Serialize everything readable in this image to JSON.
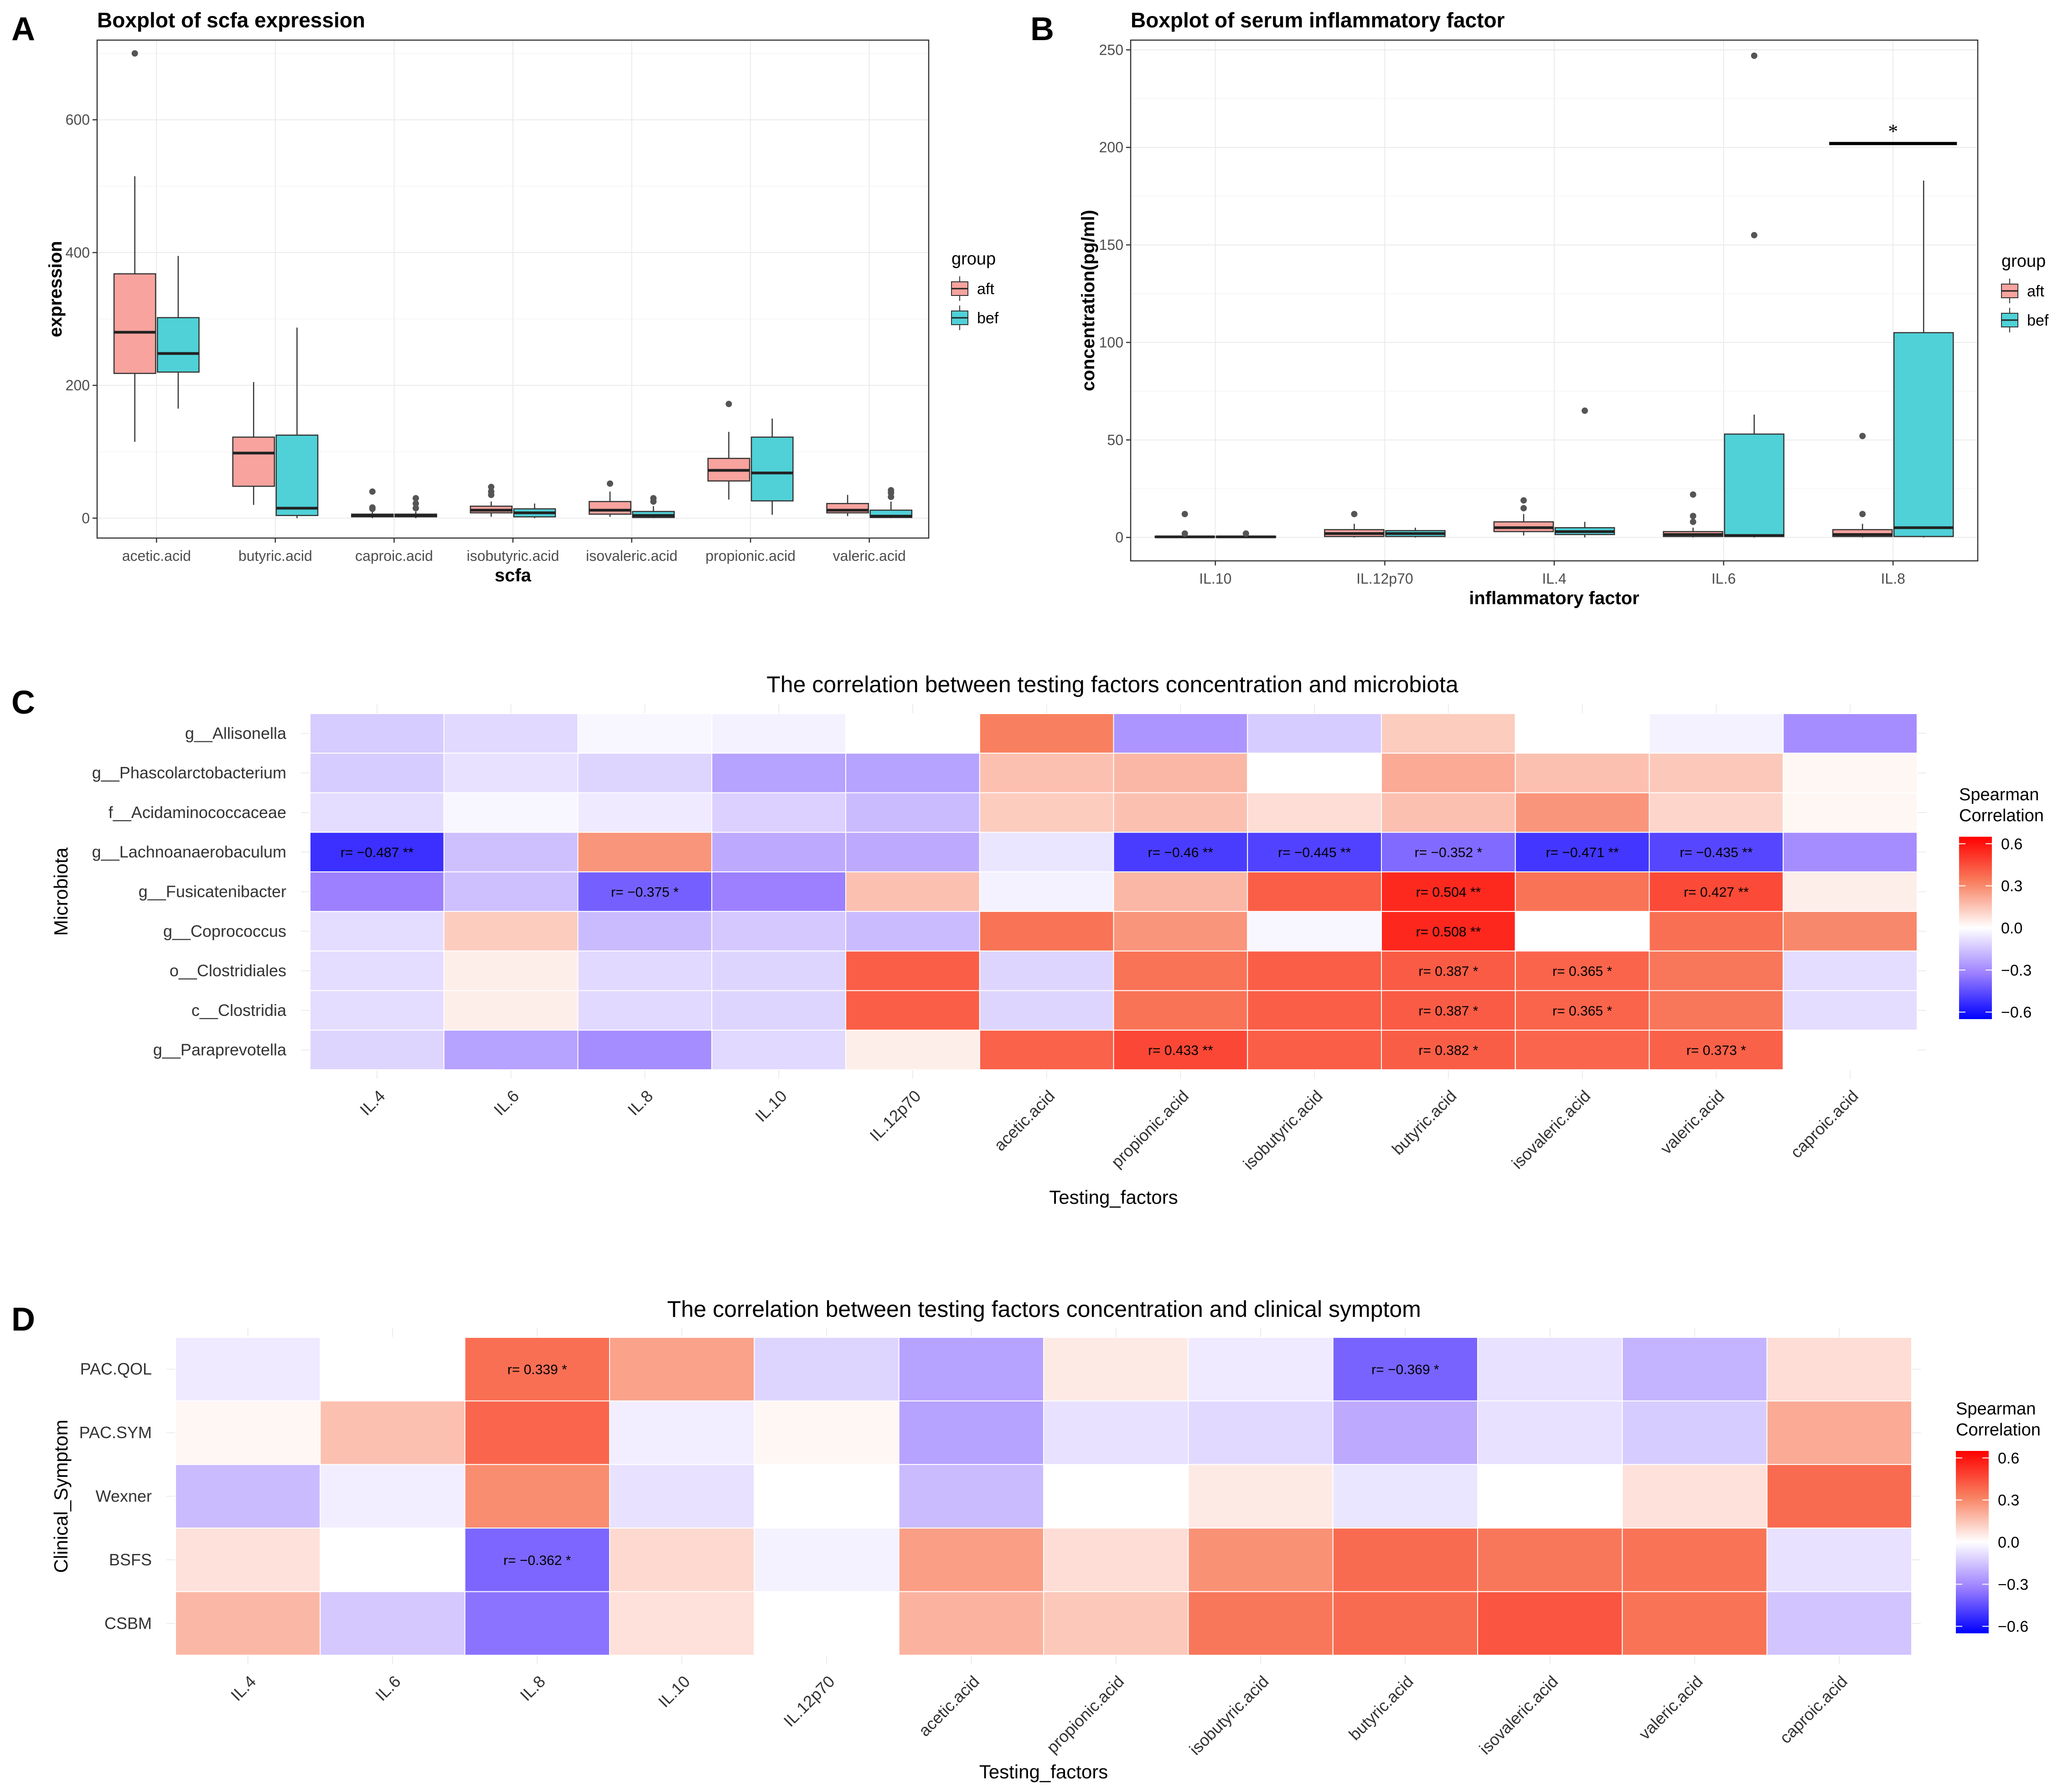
{
  "chart_data": [
    {
      "type": "box",
      "panel": "A",
      "title": "Boxplot of scfa expression",
      "xlabel": "scfa",
      "ylabel": "expression",
      "ylim": [
        -30,
        720
      ],
      "yticks": [
        0,
        200,
        400,
        600
      ],
      "categories": [
        "acetic.acid",
        "butyric.acid",
        "caproic.acid",
        "isobutyric.acid",
        "isovaleric.acid",
        "propionic.acid",
        "valeric.acid"
      ],
      "legend": {
        "title": "group",
        "entries": [
          "aft",
          "bef"
        ]
      },
      "colors": {
        "aft": "#F8A39E",
        "bef": "#4FD1D7"
      },
      "series": [
        {
          "name": "aft",
          "boxes": [
            {
              "lw": 115,
              "q1": 218,
              "med": 280,
              "q3": 368,
              "uw": 515,
              "out": [
                700
              ]
            },
            {
              "lw": 20,
              "q1": 48,
              "med": 98,
              "q3": 122,
              "uw": 205,
              "out": []
            },
            {
              "lw": 0,
              "q1": 2,
              "med": 4,
              "q3": 6,
              "uw": 10,
              "out": [
                14,
                16,
                40
              ]
            },
            {
              "lw": 2,
              "q1": 8,
              "med": 12,
              "q3": 18,
              "uw": 25,
              "out": [
                35,
                40,
                47
              ]
            },
            {
              "lw": 2,
              "q1": 6,
              "med": 12,
              "q3": 25,
              "uw": 40,
              "out": [
                52
              ]
            },
            {
              "lw": 28,
              "q1": 56,
              "med": 72,
              "q3": 90,
              "uw": 130,
              "out": [
                172
              ]
            },
            {
              "lw": 3,
              "q1": 8,
              "med": 12,
              "q3": 22,
              "uw": 35,
              "out": []
            }
          ]
        },
        {
          "name": "bef",
          "boxes": [
            {
              "lw": 165,
              "q1": 220,
              "med": 248,
              "q3": 302,
              "uw": 395,
              "out": []
            },
            {
              "lw": 0,
              "q1": 4,
              "med": 15,
              "q3": 125,
              "uw": 287,
              "out": []
            },
            {
              "lw": 0,
              "q1": 2,
              "med": 4,
              "q3": 6,
              "uw": 10,
              "out": [
                15,
                22,
                30
              ]
            },
            {
              "lw": 0,
              "q1": 2,
              "med": 8,
              "q3": 14,
              "uw": 22,
              "out": []
            },
            {
              "lw": 0,
              "q1": 1,
              "med": 4,
              "q3": 10,
              "uw": 18,
              "out": [
                25,
                30
              ]
            },
            {
              "lw": 5,
              "q1": 26,
              "med": 68,
              "q3": 122,
              "uw": 150,
              "out": []
            },
            {
              "lw": 0,
              "q1": 1,
              "med": 3,
              "q3": 12,
              "uw": 25,
              "out": [
                32,
                38,
                42
              ]
            }
          ]
        }
      ]
    },
    {
      "type": "box",
      "panel": "B",
      "title": "Boxplot of serum inflammatory factor",
      "xlabel": "inflammatory factor",
      "ylabel": "concentration(pg/ml)",
      "ylim": [
        -12,
        255
      ],
      "yticks": [
        0,
        50,
        100,
        150,
        200,
        250
      ],
      "categories": [
        "IL.10",
        "IL.12p70",
        "IL.4",
        "IL.6",
        "IL.8"
      ],
      "legend": {
        "title": "group",
        "entries": [
          "aft",
          "bef"
        ]
      },
      "colors": {
        "aft": "#F8A39E",
        "bef": "#4FD1D7"
      },
      "significance": {
        "category": "IL.8",
        "y": 202,
        "label": "*"
      },
      "series": [
        {
          "name": "aft",
          "boxes": [
            {
              "lw": 0,
              "q1": 0,
              "med": 0.3,
              "q3": 0.6,
              "uw": 1,
              "out": [
                2,
                12
              ]
            },
            {
              "lw": 0,
              "q1": 0.5,
              "med": 2,
              "q3": 4,
              "uw": 7,
              "out": [
                12
              ]
            },
            {
              "lw": 1,
              "q1": 3,
              "med": 5,
              "q3": 8,
              "uw": 12,
              "out": [
                15,
                19
              ]
            },
            {
              "lw": 0,
              "q1": 0.5,
              "med": 1.5,
              "q3": 3,
              "uw": 5,
              "out": [
                8,
                11,
                22
              ]
            },
            {
              "lw": 0,
              "q1": 0.5,
              "med": 1.5,
              "q3": 4,
              "uw": 7,
              "out": [
                12,
                52
              ]
            }
          ]
        },
        {
          "name": "bef",
          "boxes": [
            {
              "lw": 0,
              "q1": 0,
              "med": 0.3,
              "q3": 0.6,
              "uw": 1,
              "out": [
                2
              ]
            },
            {
              "lw": 0,
              "q1": 0.5,
              "med": 2,
              "q3": 3.5,
              "uw": 5,
              "out": []
            },
            {
              "lw": 0,
              "q1": 1.5,
              "med": 3,
              "q3": 5,
              "uw": 8,
              "out": [
                65
              ]
            },
            {
              "lw": 0,
              "q1": 0.5,
              "med": 1,
              "q3": 53,
              "uw": 63,
              "out": [
                155,
                247
              ]
            },
            {
              "lw": 0,
              "q1": 0.5,
              "med": 5,
              "q3": 105,
              "uw": 183,
              "out": []
            }
          ]
        }
      ]
    },
    {
      "type": "heatmap",
      "panel": "C",
      "title": "The correlation between testing factors concentration and microbiota",
      "xlabel": "Testing_factors",
      "ylabel": "Microbiota",
      "columns": [
        "IL.4",
        "IL.6",
        "IL.8",
        "IL.10",
        "IL.12p70",
        "acetic.acid",
        "propionic.acid",
        "isobutyric.acid",
        "butyric.acid",
        "isovaleric.acid",
        "valeric.acid",
        "caproic.acid"
      ],
      "rows": [
        "g__Allisonella",
        "g__Phascolarctobacterium",
        "f__Acidaminococcaceae",
        "g__Lachnoanaerobaculum",
        "g__Fusicatenibacter",
        "g__Coprococcus",
        "o__Clostridiales",
        "c__Clostridia",
        "g__Paraprevotella"
      ],
      "values": [
        [
          -0.12,
          -0.09,
          -0.02,
          -0.03,
          0.0,
          0.3,
          -0.25,
          -0.12,
          0.12,
          0.0,
          -0.03,
          -0.27
        ],
        [
          -0.12,
          -0.07,
          -0.1,
          -0.22,
          -0.22,
          0.15,
          0.17,
          0.0,
          0.2,
          0.15,
          0.13,
          0.02
        ],
        [
          -0.08,
          -0.02,
          -0.05,
          -0.11,
          -0.16,
          0.12,
          0.15,
          0.08,
          0.15,
          0.25,
          0.1,
          0.02
        ],
        [
          -0.487,
          -0.15,
          0.25,
          -0.2,
          -0.2,
          -0.06,
          -0.46,
          -0.445,
          -0.352,
          -0.471,
          -0.435,
          -0.27
        ],
        [
          -0.3,
          -0.15,
          -0.375,
          -0.3,
          0.15,
          -0.03,
          0.17,
          0.38,
          0.504,
          0.33,
          0.427,
          0.04
        ],
        [
          -0.08,
          0.12,
          -0.16,
          -0.13,
          -0.16,
          0.33,
          0.25,
          -0.02,
          0.508,
          0.0,
          0.34,
          0.28
        ],
        [
          -0.08,
          0.04,
          -0.09,
          -0.1,
          0.38,
          -0.1,
          0.33,
          0.38,
          0.387,
          0.365,
          0.32,
          -0.08
        ],
        [
          -0.08,
          0.04,
          -0.09,
          -0.1,
          0.38,
          -0.1,
          0.33,
          0.38,
          0.387,
          0.365,
          0.32,
          -0.08
        ],
        [
          -0.1,
          -0.22,
          -0.27,
          -0.09,
          0.04,
          0.37,
          0.433,
          0.38,
          0.382,
          0.36,
          0.373,
          0.0
        ]
      ],
      "annotations": [
        {
          "row": 3,
          "col": 0,
          "text": "r= −0.487 **"
        },
        {
          "row": 3,
          "col": 6,
          "text": "r= −0.46 **"
        },
        {
          "row": 3,
          "col": 7,
          "text": "r= −0.445 **"
        },
        {
          "row": 3,
          "col": 8,
          "text": "r= −0.352 *"
        },
        {
          "row": 3,
          "col": 9,
          "text": "r= −0.471 **"
        },
        {
          "row": 3,
          "col": 10,
          "text": "r= −0.435 **"
        },
        {
          "row": 4,
          "col": 2,
          "text": "r= −0.375 *"
        },
        {
          "row": 4,
          "col": 8,
          "text": "r= 0.504 **"
        },
        {
          "row": 4,
          "col": 10,
          "text": "r= 0.427 **"
        },
        {
          "row": 5,
          "col": 8,
          "text": "r= 0.508 **"
        },
        {
          "row": 6,
          "col": 8,
          "text": "r= 0.387 *"
        },
        {
          "row": 6,
          "col": 9,
          "text": "r= 0.365 *"
        },
        {
          "row": 7,
          "col": 8,
          "text": "r= 0.387 *"
        },
        {
          "row": 7,
          "col": 9,
          "text": "r= 0.365 *"
        },
        {
          "row": 8,
          "col": 6,
          "text": "r= 0.433 **"
        },
        {
          "row": 8,
          "col": 8,
          "text": "r= 0.382 *"
        },
        {
          "row": 8,
          "col": 10,
          "text": "r= 0.373 *"
        }
      ],
      "legend": {
        "title": [
          "Spearman",
          "Correlation"
        ],
        "ticks": [
          0.6,
          0.3,
          0.0,
          -0.3,
          -0.6
        ],
        "tick_labels": [
          "0.6",
          "0.3",
          "0.0",
          "−0.3",
          "−0.6"
        ]
      }
    },
    {
      "type": "heatmap",
      "panel": "D",
      "title": "The correlation between testing factors concentration and clinical symptom",
      "xlabel": "Testing_factors",
      "ylabel": "Clinical_Symptom",
      "columns": [
        "IL.4",
        "IL.6",
        "IL.8",
        "IL.10",
        "IL.12p70",
        "acetic.acid",
        "propionic.acid",
        "isobutyric.acid",
        "butyric.acid",
        "isovaleric.acid",
        "valeric.acid",
        "caproic.acid"
      ],
      "rows": [
        "PAC.QOL",
        "PAC.SYM",
        "Wexner",
        "BSFS",
        "CSBM"
      ],
      "values": [
        [
          -0.05,
          0.0,
          0.339,
          0.22,
          -0.1,
          -0.22,
          0.05,
          -0.05,
          -0.369,
          -0.07,
          -0.18,
          0.08
        ],
        [
          0.02,
          0.15,
          0.36,
          -0.04,
          0.02,
          -0.22,
          -0.07,
          -0.09,
          -0.2,
          -0.07,
          -0.12,
          0.2
        ],
        [
          -0.16,
          -0.04,
          0.27,
          -0.07,
          0.0,
          -0.16,
          0.0,
          0.05,
          -0.06,
          0.0,
          0.07,
          0.35
        ],
        [
          0.07,
          0.0,
          -0.362,
          0.09,
          -0.03,
          0.23,
          0.08,
          0.26,
          0.35,
          0.32,
          0.33,
          -0.07
        ],
        [
          0.17,
          -0.13,
          -0.33,
          0.07,
          0.0,
          0.18,
          0.13,
          0.32,
          0.35,
          0.4,
          0.33,
          -0.14
        ]
      ],
      "annotations": [
        {
          "row": 0,
          "col": 2,
          "text": "r= 0.339 *"
        },
        {
          "row": 0,
          "col": 8,
          "text": "r= −0.369 *"
        },
        {
          "row": 3,
          "col": 2,
          "text": "r= −0.362 *"
        }
      ],
      "legend": {
        "title": [
          "Spearman",
          "Correlation"
        ],
        "ticks": [
          0.6,
          0.3,
          0.0,
          -0.3,
          -0.6
        ],
        "tick_labels": [
          "0.6",
          "0.3",
          "0.0",
          "−0.3",
          "−0.6"
        ]
      }
    }
  ]
}
